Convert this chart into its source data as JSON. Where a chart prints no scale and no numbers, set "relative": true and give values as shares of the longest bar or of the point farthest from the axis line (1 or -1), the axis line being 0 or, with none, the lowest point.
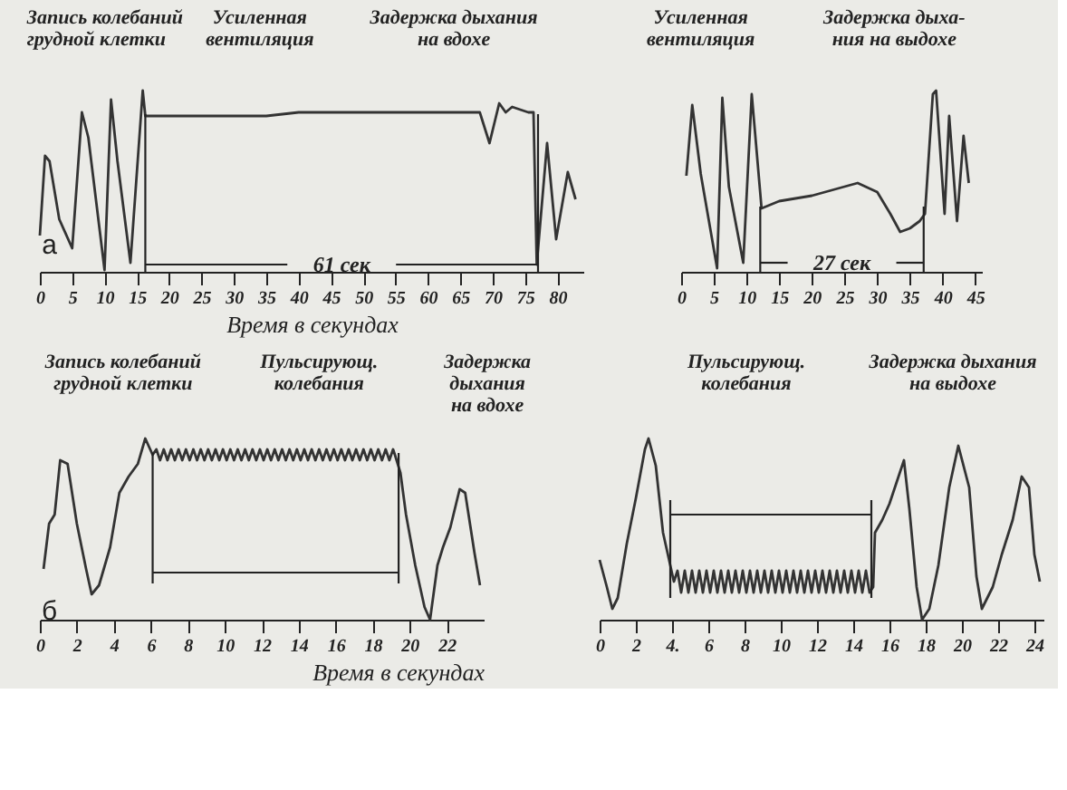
{
  "chart_data": [
    {
      "type": "line",
      "relative": true,
      "tick_labels": "x",
      "xlim": [
        0,
        84
      ],
      "xticks": [
        0,
        5,
        10,
        15,
        20,
        25,
        30,
        35,
        40,
        45,
        50,
        55,
        60,
        65,
        70,
        75,
        80
      ],
      "xlabel": "Время в секундах",
      "annotations": [
        "Запись колебаний\nгрудной клетки",
        "Усиленная\nвентиляция",
        "Задержка дыхания\nна вдохе",
        "а"
      ],
      "ref_lines": [
        {
          "axis": "x",
          "value": 16.3
        },
        {
          "axis": "x",
          "value": 77
        },
        {
          "axis": "y",
          "value": 0.04,
          "label": "61 сек"
        }
      ],
      "x": [
        0,
        0.8,
        1.5,
        3,
        5,
        6.5,
        7.5,
        10,
        11,
        12,
        14,
        15.9,
        16.3,
        20,
        35,
        40,
        60,
        68,
        69.5,
        71,
        72,
        73,
        75.5,
        76.3,
        76.8,
        78.4,
        79.8,
        81.6,
        82.8
      ],
      "series": [
        {
          "color": "#333333",
          "values": [
            0.2,
            0.64,
            0.61,
            0.29,
            0.13,
            0.88,
            0.74,
            0.01,
            0.95,
            0.61,
            0.05,
            1,
            0.86,
            0.86,
            0.86,
            0.88,
            0.88,
            0.88,
            0.71,
            0.93,
            0.88,
            0.91,
            0.88,
            0.88,
            0.04,
            0.71,
            0.18,
            0.55,
            0.4
          ]
        }
      ]
    },
    {
      "type": "line",
      "relative": true,
      "tick_labels": "x",
      "xlim": [
        0,
        46
      ],
      "xticks": [
        0,
        5,
        10,
        15,
        20,
        25,
        30,
        35,
        40,
        45
      ],
      "annotations": [
        "Усиленная\nвентиляция",
        "Задержка дыха-\nния на выдохе"
      ],
      "ref_lines": [
        {
          "axis": "x",
          "value": 12.1
        },
        {
          "axis": "x",
          "value": 37.1
        },
        {
          "axis": "y",
          "value": 0.05,
          "label": "27 сек"
        }
      ],
      "x": [
        0.8,
        1.7,
        3,
        5.5,
        6.3,
        7.3,
        9.5,
        10.8,
        12.3,
        15,
        20,
        25,
        27,
        30,
        32,
        33.5,
        35,
        36.5,
        37.3,
        38.5,
        39,
        40.3,
        41,
        42.2,
        43.2,
        44
      ],
      "series": [
        {
          "color": "#333333",
          "values": [
            0.53,
            0.92,
            0.54,
            0.02,
            0.96,
            0.47,
            0.05,
            0.98,
            0.35,
            0.39,
            0.42,
            0.47,
            0.49,
            0.44,
            0.32,
            0.22,
            0.24,
            0.28,
            0.32,
            0.98,
            1,
            0.32,
            0.86,
            0.28,
            0.75,
            0.49
          ]
        }
      ]
    },
    {
      "type": "line",
      "relative": true,
      "tick_labels": "x",
      "xlim": [
        0,
        24
      ],
      "xticks": [
        0,
        2,
        4,
        6,
        8,
        10,
        12,
        14,
        16,
        18,
        20,
        22
      ],
      "xlabel": "Время в секундах",
      "annotations": [
        "Запись колебаний\nгрудной клетки",
        "Пульсирующ.\nколебания",
        "Задержка\nдыхания\nна вдохе",
        "б"
      ],
      "ref_lines": [
        {
          "axis": "x",
          "value": 6.1
        },
        {
          "axis": "x",
          "value": 19.4
        },
        {
          "axis": "y",
          "value": 0.26
        }
      ],
      "x": [
        0.2,
        0.5,
        0.8,
        1.1,
        1.5,
        2,
        2.5,
        2.8,
        3.2,
        3.8,
        4.3,
        4.8,
        5.3,
        5.7,
        6.1,
        6.3,
        6.5,
        6.7,
        6.9,
        7.1,
        7.3,
        7.5,
        7.7,
        7.9,
        8.1,
        8.3,
        8.5,
        8.7,
        8.9,
        9.1,
        9.3,
        9.5,
        9.7,
        9.9,
        10.1,
        10.3,
        10.5,
        10.7,
        10.9,
        11.1,
        11.3,
        11.5,
        11.7,
        11.9,
        12.1,
        12.3,
        12.5,
        12.7,
        12.9,
        13.1,
        13.3,
        13.5,
        13.7,
        13.9,
        14.1,
        14.3,
        14.5,
        14.7,
        14.9,
        15.1,
        15.3,
        15.5,
        15.7,
        15.9,
        16.1,
        16.3,
        16.5,
        16.7,
        16.9,
        17.1,
        17.3,
        17.5,
        17.7,
        17.9,
        18.1,
        18.3,
        18.5,
        18.7,
        18.9,
        19.1,
        19.2,
        19.5,
        19.8,
        20.3,
        20.8,
        21.1,
        21.5,
        21.8,
        22.2,
        22.7,
        23,
        23.5,
        23.8
      ],
      "series": [
        {
          "color": "#333333",
          "values": [
            0.28,
            0.53,
            0.58,
            0.88,
            0.86,
            0.53,
            0.28,
            0.14,
            0.19,
            0.4,
            0.7,
            0.79,
            0.86,
            1,
            0.91,
            0.94,
            0.88,
            0.94,
            0.88,
            0.94,
            0.88,
            0.94,
            0.88,
            0.94,
            0.88,
            0.94,
            0.88,
            0.94,
            0.88,
            0.94,
            0.88,
            0.94,
            0.88,
            0.94,
            0.88,
            0.94,
            0.88,
            0.94,
            0.88,
            0.94,
            0.88,
            0.94,
            0.88,
            0.94,
            0.88,
            0.94,
            0.88,
            0.94,
            0.88,
            0.94,
            0.88,
            0.94,
            0.88,
            0.94,
            0.88,
            0.94,
            0.88,
            0.94,
            0.88,
            0.94,
            0.88,
            0.94,
            0.88,
            0.94,
            0.88,
            0.94,
            0.88,
            0.94,
            0.88,
            0.94,
            0.88,
            0.94,
            0.88,
            0.94,
            0.88,
            0.94,
            0.88,
            0.94,
            0.88,
            0.94,
            0.91,
            0.81,
            0.58,
            0.3,
            0.07,
            0,
            0.3,
            0.4,
            0.51,
            0.72,
            0.7,
            0.37,
            0.19
          ]
        }
      ]
    },
    {
      "type": "line",
      "relative": true,
      "tick_labels": "x",
      "xlim": [
        0,
        24.5
      ],
      "xticks": [
        0,
        2,
        {
          "value": 4,
          "label": "4."
        },
        6,
        8,
        10,
        12,
        14,
        16,
        18,
        20,
        22,
        24
      ],
      "annotations": [
        "Пульсирующ.\nколебания",
        "Задержка дыхания\nна выдохе"
      ],
      "ref_lines": [
        {
          "axis": "x",
          "value": 3.9
        },
        {
          "axis": "x",
          "value": 15.0
        },
        {
          "axis": "y",
          "value": 0.58
        }
      ],
      "x": [
        0,
        0.4,
        0.7,
        1,
        1.5,
        2,
        2.5,
        2.7,
        3.1,
        3.5,
        3.9,
        4.1,
        4.3,
        4.5,
        4.7,
        4.9,
        5.1,
        5.3,
        5.5,
        5.7,
        5.9,
        6.1,
        6.3,
        6.5,
        6.7,
        6.9,
        7.1,
        7.3,
        7.5,
        7.7,
        7.9,
        8.1,
        8.3,
        8.5,
        8.7,
        8.9,
        9.1,
        9.3,
        9.5,
        9.7,
        9.9,
        10.1,
        10.3,
        10.5,
        10.7,
        10.9,
        11.1,
        11.3,
        11.5,
        11.7,
        11.9,
        12.1,
        12.3,
        12.5,
        12.7,
        12.9,
        13.1,
        13.3,
        13.5,
        13.7,
        13.9,
        14.1,
        14.3,
        14.5,
        14.7,
        14.9,
        15.1,
        15.2,
        15.6,
        16,
        16.5,
        16.8,
        17.1,
        17.5,
        17.8,
        18.2,
        18.7,
        19.3,
        19.8,
        20.4,
        20.8,
        21.1,
        21.7,
        22.2,
        22.8,
        23.3,
        23.7,
        24,
        24.3
      ],
      "series": [
        {
          "color": "#333333",
          "values": [
            0.33,
            0.18,
            0.06,
            0.12,
            0.42,
            0.67,
            0.94,
            1,
            0.85,
            0.48,
            0.3,
            0.21,
            0.27,
            0.15,
            0.27,
            0.15,
            0.27,
            0.15,
            0.27,
            0.15,
            0.27,
            0.15,
            0.27,
            0.15,
            0.27,
            0.15,
            0.27,
            0.15,
            0.27,
            0.15,
            0.27,
            0.15,
            0.27,
            0.15,
            0.27,
            0.15,
            0.27,
            0.15,
            0.27,
            0.15,
            0.27,
            0.15,
            0.27,
            0.15,
            0.27,
            0.15,
            0.27,
            0.15,
            0.27,
            0.15,
            0.27,
            0.15,
            0.27,
            0.15,
            0.27,
            0.15,
            0.27,
            0.15,
            0.27,
            0.15,
            0.27,
            0.15,
            0.27,
            0.15,
            0.27,
            0.15,
            0.18,
            0.48,
            0.55,
            0.64,
            0.79,
            0.88,
            0.61,
            0.18,
            0,
            0.06,
            0.3,
            0.73,
            0.96,
            0.73,
            0.24,
            0.06,
            0.18,
            0.36,
            0.55,
            0.79,
            0.73,
            0.36,
            0.21
          ]
        }
      ]
    }
  ]
}
